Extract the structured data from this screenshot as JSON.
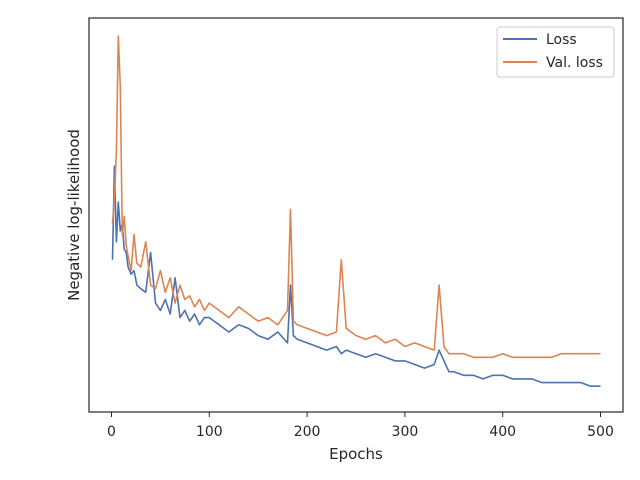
{
  "chart_data": {
    "type": "line",
    "title": "",
    "xlabel": "Epochs",
    "ylabel": "Negative log-likelihood",
    "xlim": [
      -23,
      523
    ],
    "ylim": [
      0,
      100
    ],
    "x_ticks": [
      0,
      100,
      200,
      300,
      400,
      500
    ],
    "x_tick_labels": [
      "0",
      "100",
      "200",
      "300",
      "400",
      "500"
    ],
    "y_tick_labels_visible": false,
    "grid": false,
    "legend": {
      "position": "top-right",
      "entries": [
        "Loss",
        "Val. loss"
      ]
    },
    "series": [
      {
        "name": "Loss",
        "color": "#4c72b0",
        "x": [
          1,
          3,
          5,
          7,
          9,
          11,
          13,
          15,
          17,
          20,
          23,
          26,
          30,
          35,
          40,
          45,
          50,
          55,
          60,
          65,
          70,
          75,
          80,
          85,
          90,
          95,
          100,
          110,
          120,
          130,
          140,
          150,
          160,
          170,
          180,
          183,
          186,
          190,
          200,
          210,
          220,
          230,
          235,
          240,
          250,
          260,
          270,
          280,
          290,
          300,
          310,
          320,
          330,
          335,
          340,
          345,
          350,
          360,
          370,
          380,
          390,
          400,
          410,
          420,
          430,
          440,
          450,
          460,
          470,
          480,
          490,
          500
        ],
        "y": [
          38,
          64,
          43,
          54,
          46,
          48,
          41,
          40,
          36,
          34,
          35,
          31,
          30,
          29,
          40,
          26,
          24,
          27,
          23,
          33,
          22,
          24,
          21,
          23,
          20,
          22,
          22,
          20,
          18,
          20,
          19,
          17,
          16,
          18,
          15,
          31,
          17,
          16,
          15,
          14,
          13,
          14,
          12,
          13,
          12,
          11,
          12,
          11,
          10,
          10,
          9,
          8,
          9,
          13,
          10,
          7,
          7,
          6,
          6,
          5,
          6,
          6,
          5,
          5,
          5,
          4,
          4,
          4,
          4,
          4,
          3,
          3
        ]
      },
      {
        "name": "Val. loss",
        "color": "#dd8452",
        "x": [
          1,
          3,
          5,
          7,
          9,
          11,
          13,
          15,
          17,
          20,
          23,
          26,
          30,
          35,
          40,
          45,
          50,
          55,
          60,
          65,
          70,
          75,
          80,
          85,
          90,
          95,
          100,
          110,
          120,
          130,
          140,
          150,
          160,
          170,
          180,
          183,
          186,
          190,
          200,
          210,
          220,
          230,
          235,
          240,
          250,
          260,
          270,
          280,
          290,
          300,
          310,
          320,
          330,
          335,
          340,
          345,
          350,
          360,
          370,
          380,
          390,
          400,
          410,
          420,
          430,
          440,
          450,
          460,
          470,
          480,
          490,
          500
        ],
        "y": [
          48,
          55,
          68,
          100,
          86,
          45,
          50,
          42,
          39,
          35,
          45,
          37,
          36,
          43,
          31,
          30,
          35,
          29,
          33,
          26,
          31,
          27,
          28,
          25,
          27,
          24,
          26,
          24,
          22,
          25,
          23,
          21,
          22,
          20,
          24,
          52,
          21,
          20,
          19,
          18,
          17,
          18,
          38,
          19,
          17,
          16,
          17,
          15,
          16,
          14,
          15,
          14,
          13,
          31,
          14,
          12,
          12,
          12,
          11,
          11,
          11,
          12,
          11,
          11,
          11,
          11,
          11,
          12,
          12,
          12,
          12,
          12
        ]
      }
    ]
  }
}
